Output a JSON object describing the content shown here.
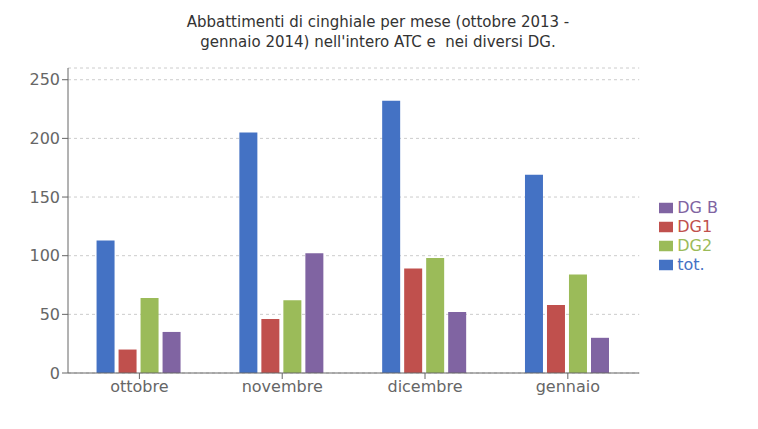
{
  "chart_data": {
    "type": "bar",
    "title": "Abbattimenti di cinghiale per mese (ottobre 2013 -\ngennaio 2014) nell'intero ATC e  nei diversi DG.",
    "categories": [
      "ottobre",
      "novembre",
      "dicembre",
      "gennaio"
    ],
    "series": [
      {
        "name": "tot.",
        "color": "#4472C4",
        "values": [
          113,
          205,
          232,
          169
        ]
      },
      {
        "name": "DG1",
        "color": "#C0504D",
        "values": [
          20,
          46,
          89,
          58
        ]
      },
      {
        "name": "DG2",
        "color": "#9BBB59",
        "values": [
          64,
          62,
          98,
          84
        ]
      },
      {
        "name": "DG B",
        "color": "#8064A2",
        "values": [
          35,
          102,
          52,
          30
        ]
      }
    ],
    "ylim": [
      0,
      260
    ],
    "yticks": [
      0,
      50,
      100,
      150,
      200,
      250
    ],
    "grid": true,
    "legend": "right"
  }
}
